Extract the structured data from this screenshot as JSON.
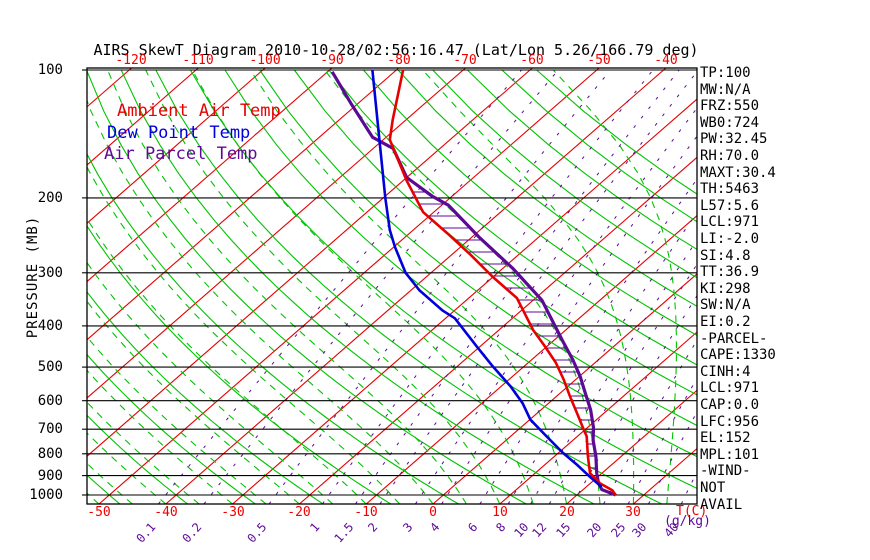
{
  "title": "AIRS SkewT Diagram 2010-10-28/02:56:16.47 (Lat/Lon 5.26/166.79 deg)",
  "colors": {
    "isotherm_red": "#e60000",
    "label_red": "#f20000",
    "adiabat_green": "#00c300",
    "purple": "#5c0a96",
    "dewpoint_blue": "#0000dd",
    "black": "#000000",
    "background": "#ffffff"
  },
  "legend": {
    "items": [
      {
        "label": "Ambient Air Temp",
        "color_key": "isotherm_red"
      },
      {
        "label": "Dew Point Temp",
        "color_key": "dewpoint_blue"
      },
      {
        "label": "Air Parcel Temp",
        "color_key": "purple"
      }
    ]
  },
  "axes": {
    "pressure_label": "PRESSURE  (MB)",
    "pressure_ticks": [
      100,
      200,
      300,
      400,
      500,
      600,
      700,
      800,
      900,
      1000
    ],
    "top_temp_ticks": [
      -120,
      -110,
      -100,
      -90,
      -80,
      -70,
      -60,
      -50,
      -40
    ],
    "bottom_temp_ticks": [
      -50,
      -40,
      -30,
      -20,
      -10,
      0,
      10,
      20,
      30
    ],
    "temp_unit": "T(C)",
    "mixing_ratio_ticks": [
      0.1,
      0.2,
      0.5,
      1,
      1.5,
      2,
      3,
      4,
      6,
      8,
      10,
      12,
      15,
      20,
      25,
      30,
      40
    ],
    "mixing_unit": "(g/kg)"
  },
  "stats": {
    "lines": [
      "TP:100",
      "MW:N/A",
      "FRZ:550",
      "WB0:724",
      "PW:32.45",
      "RH:70.0",
      "MAXT:30.4",
      "TH:5463",
      "L57:5.6",
      "LCL:971",
      "LI:-2.0",
      "SI:4.8",
      "TT:36.9",
      "KI:298",
      "SW:N/A",
      "EI:0.2",
      "-PARCEL-",
      "CAPE:1330",
      "CINH:4",
      "LCL:971",
      "CAP:0.0",
      "LFC:956",
      "EL:152",
      "MPL:101",
      "-WIND-",
      "NOT",
      "AVAIL"
    ]
  },
  "chart_data": {
    "type": "line",
    "subtype": "skewt-log-p",
    "title": "AIRS SkewT Diagram 2010-10-28/02:56:16.47 (Lat/Lon 5.26/166.79 deg)",
    "xlabel": "T(C)",
    "ylabel": "PRESSURE (MB)",
    "pressure_range_mb": [
      100,
      1050
    ],
    "bottom_temp_range_c": [
      -50,
      40
    ],
    "grid": {
      "isobars_mb": [
        100,
        200,
        300,
        400,
        500,
        600,
        700,
        800,
        900,
        1000
      ],
      "isotherm_step_c": 10,
      "dry_adiabats": "solid green",
      "moist_adiabats": "dashed green",
      "mixing_ratio_lines_g_kg": [
        0.1,
        0.2,
        0.5,
        1,
        1.5,
        2,
        3,
        4,
        6,
        8,
        10,
        12,
        15,
        20,
        25,
        30,
        40
      ]
    },
    "cape_hatch_between": [
      "Ambient Air Temp",
      "Air Parcel Temp"
    ],
    "series": [
      {
        "name": "Ambient Air Temp",
        "color_key": "isotherm_red",
        "points_p_t": [
          [
            100,
            -79
          ],
          [
            131,
            -72
          ],
          [
            146,
            -69
          ],
          [
            182,
            -59.5
          ],
          [
            216,
            -51.6
          ],
          [
            242,
            -44.4
          ],
          [
            272,
            -37.2
          ],
          [
            307,
            -30
          ],
          [
            344,
            -22.8
          ],
          [
            409,
            -14.9
          ],
          [
            448,
            -10.2
          ],
          [
            488,
            -5.9
          ],
          [
            535,
            -1.8
          ],
          [
            587,
            2.1
          ],
          [
            641,
            5.9
          ],
          [
            700,
            9.7
          ],
          [
            728,
            11.4
          ],
          [
            811,
            15
          ],
          [
            888,
            18.2
          ],
          [
            938,
            21.4
          ],
          [
            975,
            24.5
          ],
          [
            1000,
            25.8
          ]
        ]
      },
      {
        "name": "Dew Point Temp",
        "color_key": "dewpoint_blue",
        "points_p_t": [
          [
            100,
            -83.6
          ],
          [
            136,
            -73
          ],
          [
            200,
            -59.7
          ],
          [
            238,
            -53.5
          ],
          [
            261,
            -49.8
          ],
          [
            300,
            -43.8
          ],
          [
            330,
            -38.7
          ],
          [
            368,
            -31.8
          ],
          [
            384,
            -28.6
          ],
          [
            448,
            -20.4
          ],
          [
            498,
            -14.7
          ],
          [
            555,
            -8.6
          ],
          [
            608,
            -3.9
          ],
          [
            665,
            0.1
          ],
          [
            728,
            5.4
          ],
          [
            795,
            10.6
          ],
          [
            850,
            14.9
          ],
          [
            903,
            18.6
          ],
          [
            957,
            22.3
          ]
        ]
      },
      {
        "name": "Air Parcel Temp",
        "color_key": "purple",
        "points_p_t": [
          [
            101,
            -89.3
          ],
          [
            120,
            -81
          ],
          [
            144,
            -72
          ],
          [
            153,
            -67
          ],
          [
            179,
            -60
          ],
          [
            198,
            -53
          ],
          [
            208,
            -49
          ],
          [
            247,
            -39
          ],
          [
            293,
            -28.5
          ],
          [
            348,
            -18.7
          ],
          [
            433,
            -8.7
          ],
          [
            481,
            -3.8
          ],
          [
            527,
            0.2
          ],
          [
            575,
            3.7
          ],
          [
            630,
            7.4
          ],
          [
            694,
            10.9
          ],
          [
            743,
            13
          ],
          [
            811,
            16.2
          ],
          [
            888,
            19.2
          ],
          [
            938,
            21.2
          ],
          [
            971,
            22.8
          ],
          [
            1000,
            25.8
          ]
        ]
      }
    ]
  }
}
